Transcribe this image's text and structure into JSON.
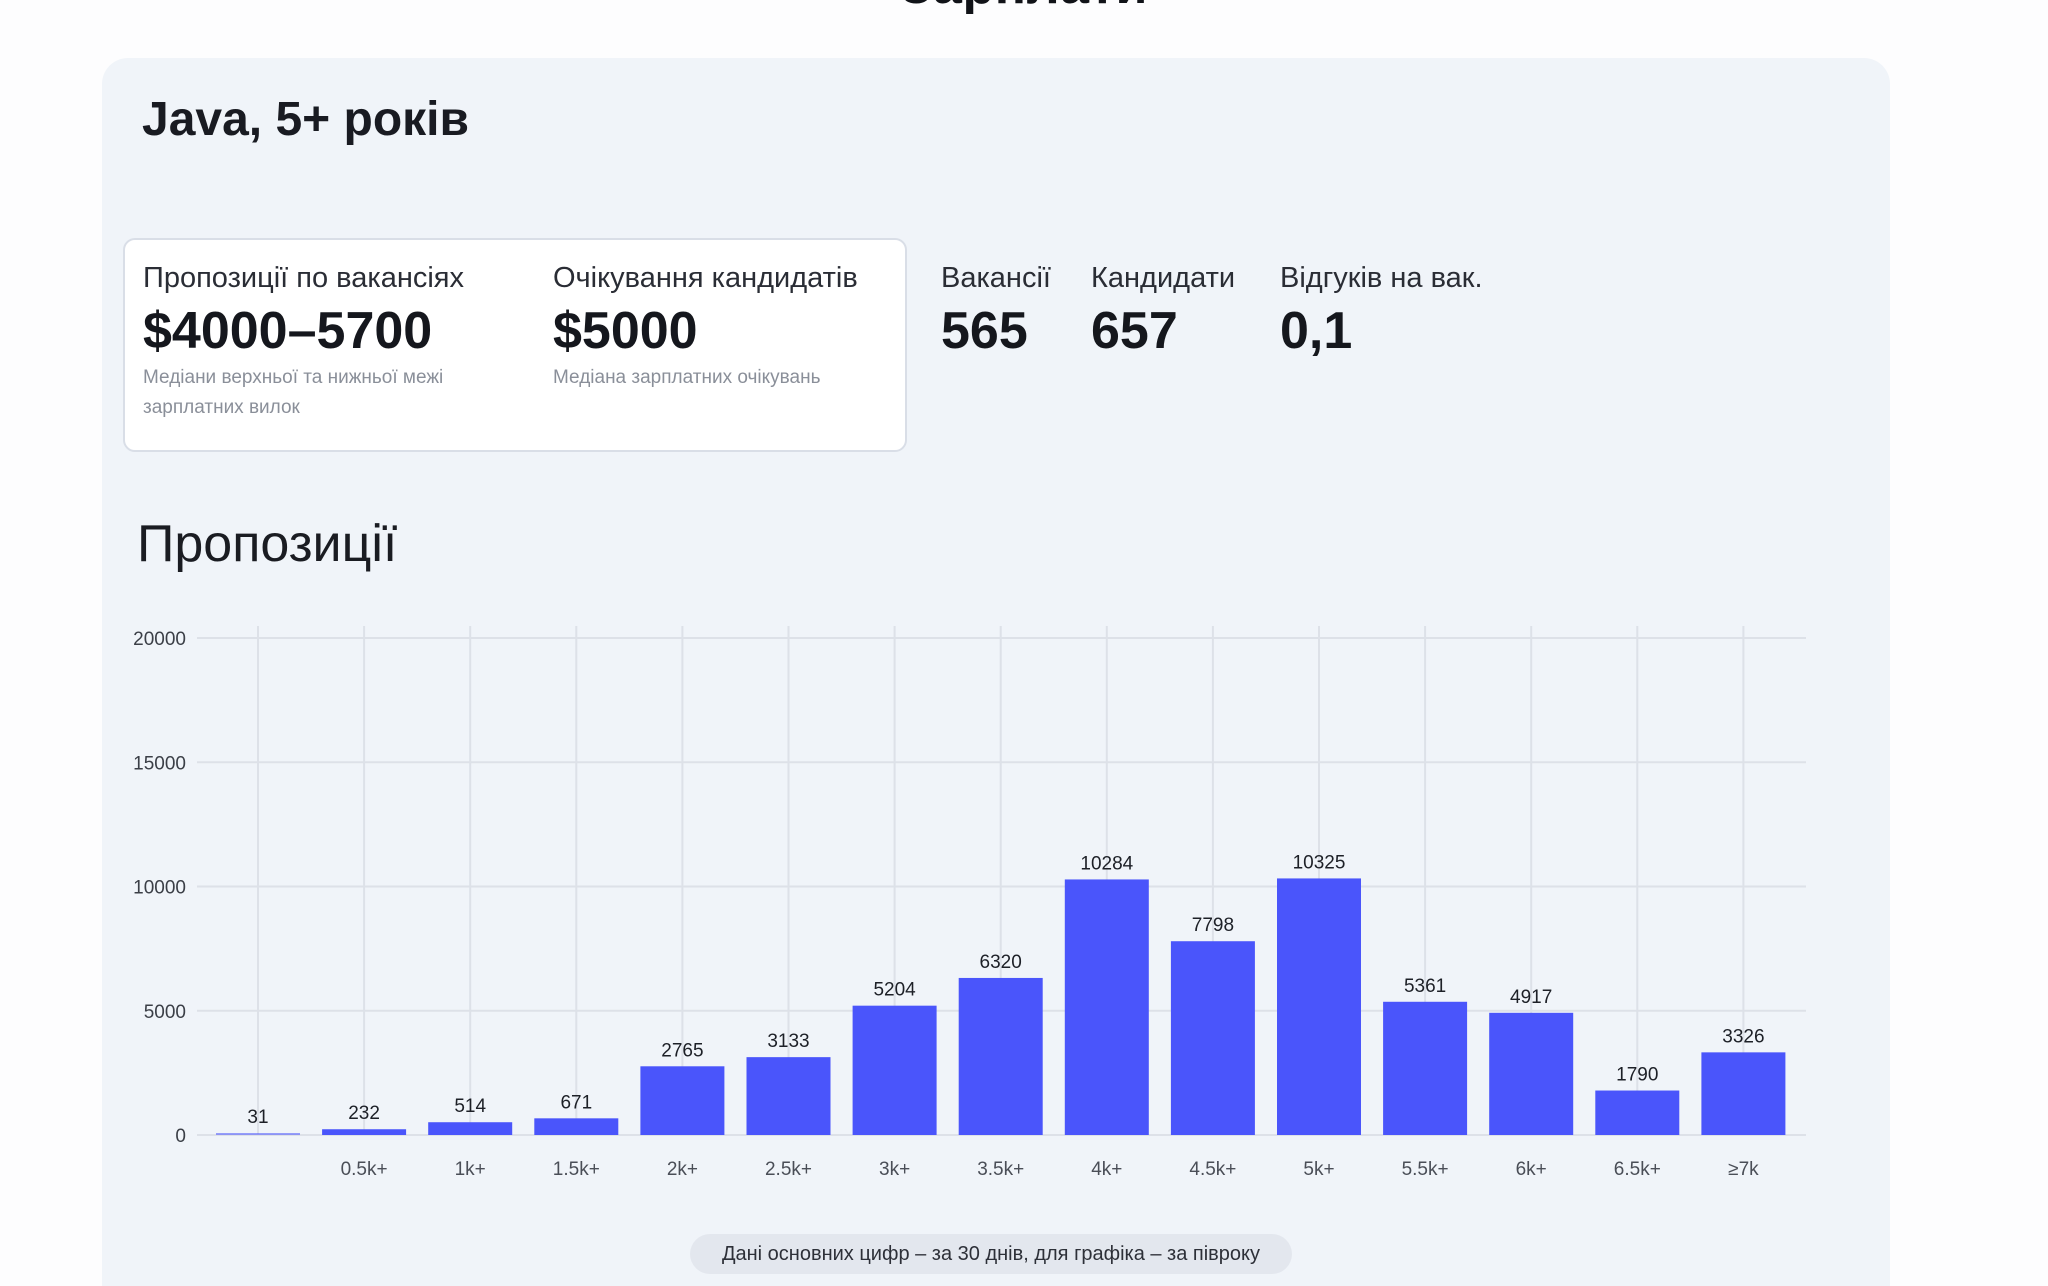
{
  "page": {
    "heading": "Зарплати"
  },
  "card": {
    "title": "Java, 5+ років"
  },
  "summary": {
    "offers": {
      "label": "Пропозиції по вакансіях",
      "value": "$4000–5700",
      "note": "Медіани верхньої та нижньої межі зарплатних вилок"
    },
    "expectations": {
      "label": "Очікування кандидатів",
      "value": "$5000",
      "note": "Медіана зарплатних очікувань"
    }
  },
  "metrics": [
    {
      "label": "Вакансії",
      "value": "565"
    },
    {
      "label": "Кандидати",
      "value": "657"
    },
    {
      "label": "Відгуків на вак.",
      "value": "0,1"
    }
  ],
  "section": {
    "title": "Пропозиції"
  },
  "colors": {
    "bar": "#4a55fb",
    "grid": "#dde1e8",
    "card_bg": "#f0f4f9"
  },
  "chart_data": {
    "type": "bar",
    "categories": [
      "",
      "0.5k+",
      "1k+",
      "1.5k+",
      "2k+",
      "2.5k+",
      "3k+",
      "3.5k+",
      "4k+",
      "4.5k+",
      "5k+",
      "5.5k+",
      "6k+",
      "6.5k+",
      "≥7k"
    ],
    "values": [
      31,
      232,
      514,
      671,
      2765,
      3133,
      5204,
      6320,
      10284,
      7798,
      10325,
      5361,
      4917,
      1790,
      3326
    ],
    "ylim": [
      0,
      20000
    ],
    "yticks": [
      0,
      5000,
      10000,
      15000,
      20000
    ],
    "grid": true,
    "title": "",
    "xlabel": "",
    "ylabel": ""
  },
  "footnote": "Дані основних цифр – за 30 днів, для графіка – за півроку"
}
